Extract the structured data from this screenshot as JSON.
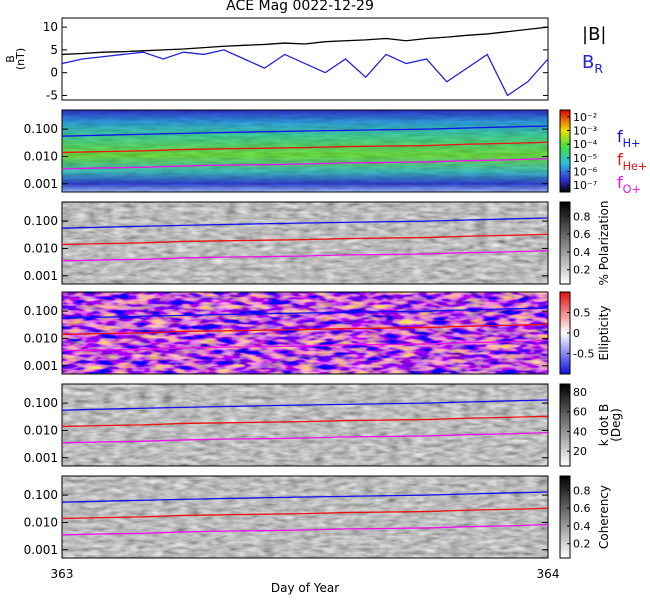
{
  "chart_data": {
    "type": "line",
    "title": "ACE Mag 0022-12-29",
    "x_label": "Day of Year",
    "xlim": [
      363,
      364
    ],
    "xticks": [
      363,
      364
    ],
    "top_panel": {
      "y_label": [
        "B",
        "(nT)"
      ],
      "ylim": [
        -6,
        12
      ],
      "yticks": [
        -5,
        0,
        5,
        10
      ],
      "x": [
        363,
        363.0417,
        363.0833,
        363.125,
        363.1667,
        363.2083,
        363.25,
        363.2917,
        363.3333,
        363.375,
        363.4167,
        363.4583,
        363.5,
        363.5417,
        363.5833,
        363.625,
        363.6667,
        363.7083,
        363.75,
        363.7917,
        363.8333,
        363.875,
        363.9167,
        363.9583,
        364
      ],
      "series": [
        {
          "name": "|B|",
          "color": "#000000",
          "values": [
            4,
            4.2,
            4.5,
            4.6,
            4.8,
            5,
            5.2,
            5.5,
            5.8,
            6,
            6.2,
            6.5,
            6.3,
            6.8,
            7,
            7.2,
            7.5,
            7,
            7.5,
            7.8,
            8.2,
            8.5,
            9,
            9.5,
            10
          ]
        },
        {
          "name": "B",
          "subscript": "R",
          "color": "#2222dd",
          "values": [
            2,
            3,
            3.5,
            4,
            4.5,
            3,
            4.5,
            4,
            5,
            3,
            1,
            4,
            2,
            0,
            3,
            -1,
            4,
            2,
            3,
            -2,
            1,
            4,
            -5,
            -2,
            3
          ]
        }
      ]
    },
    "freq_panels": {
      "ylim": [
        0.0005,
        0.5
      ],
      "log_y": true,
      "yticks": [
        {
          "value": 0.001,
          "label": "0.001"
        },
        {
          "value": 0.01,
          "label": "0.010"
        },
        {
          "value": 0.1,
          "label": "0.100"
        }
      ],
      "x": [
        363,
        363.0833,
        363.1667,
        363.25,
        363.3333,
        363.4167,
        363.5,
        363.5833,
        363.6667,
        363.75,
        363.8333,
        363.9167,
        364
      ],
      "series": [
        {
          "name": "f",
          "subscript": "H+",
          "color": "#1010ee",
          "values": [
            0.055,
            0.06,
            0.065,
            0.07,
            0.075,
            0.08,
            0.085,
            0.09,
            0.095,
            0.1,
            0.11,
            0.12,
            0.13
          ]
        },
        {
          "name": "f",
          "subscript": "He+",
          "color": "#ee1010",
          "values": [
            0.014,
            0.015,
            0.016,
            0.018,
            0.019,
            0.02,
            0.021,
            0.023,
            0.024,
            0.025,
            0.028,
            0.03,
            0.033
          ]
        },
        {
          "name": "f",
          "subscript": "O+",
          "color": "#ee10ee",
          "values": [
            0.0035,
            0.0038,
            0.004,
            0.0045,
            0.0048,
            0.005,
            0.0053,
            0.0058,
            0.006,
            0.0063,
            0.007,
            0.0075,
            0.0083
          ]
        }
      ]
    },
    "colorbars": [
      {
        "label": [],
        "clim": [
          0.5,
          6.5
        ],
        "ticks": [
          {
            "value": 1,
            "label": "10⁻⁷"
          },
          {
            "value": 2,
            "label": "10⁻⁶"
          },
          {
            "value": 3,
            "label": "10⁻⁵"
          },
          {
            "value": 4,
            "label": "10⁻⁴"
          },
          {
            "value": 5,
            "label": "10⁻³"
          },
          {
            "value": 6,
            "label": "10⁻²"
          }
        ]
      },
      {
        "label": [
          "% Polarization"
        ],
        "clim": [
          0.04,
          0.96
        ],
        "ticks": [
          0.2,
          0.4,
          0.6,
          0.8
        ]
      },
      {
        "label": [
          "Ellipticity"
        ],
        "clim": [
          -1,
          1
        ],
        "ticks": [
          -0.5,
          0.0,
          0.5
        ]
      },
      {
        "label": [
          "k dot B",
          "(Deg)"
        ],
        "clim": [
          5,
          88
        ],
        "ticks": [
          20,
          40,
          60,
          80
        ]
      },
      {
        "label": [
          "Coherency"
        ],
        "clim": [
          0.04,
          0.96
        ],
        "ticks": [
          0.2,
          0.4,
          0.6,
          0.8
        ]
      }
    ]
  }
}
